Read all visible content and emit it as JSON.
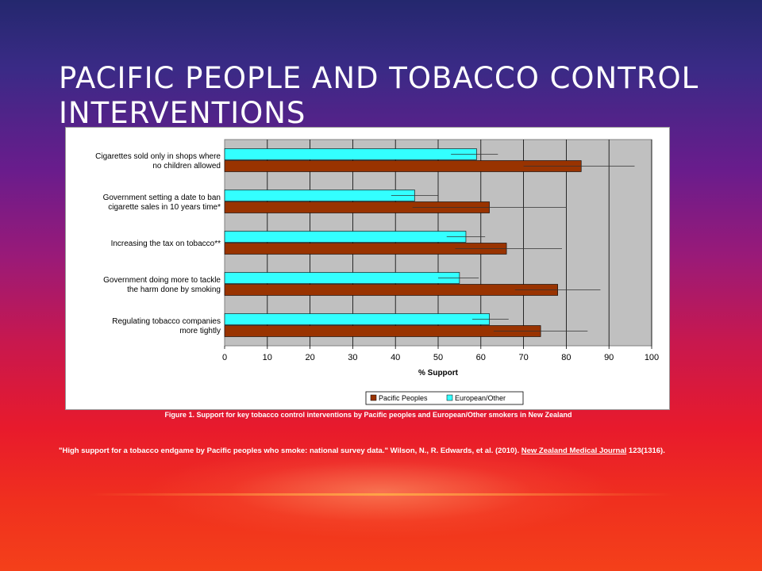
{
  "slide": {
    "title": "Pacific People and Tobacco Control Interventions",
    "caption": "Figure 1. Support for key tobacco control interventions by Pacific peoples and European/Other smokers in New Zealand",
    "citation_main": "\"High support for a tobacco endgame by Pacific peoples who smoke: national survey data.\" Wilson, N., R. Edwards, et al. (2010). ",
    "citation_journal": "New Zealand Medical Journal",
    "citation_tail": " 123(1316)."
  },
  "chart_data": {
    "type": "bar",
    "orientation": "horizontal",
    "categories": [
      [
        "Cigarettes sold only in shops where",
        "no children allowed"
      ],
      [
        "Government setting a date to ban",
        "cigarette sales in 10 years time*"
      ],
      [
        "Increasing the tax on tobacco**"
      ],
      [
        "Government doing more to tackle",
        "the harm done by smoking"
      ],
      [
        "Regulating tobacco companies",
        "more tightly"
      ]
    ],
    "series": [
      {
        "name": "European/Other",
        "color": "#33ffff",
        "values": [
          59,
          44.5,
          56.5,
          55,
          62
        ],
        "error": [
          [
            53,
            64
          ],
          [
            39,
            50
          ],
          [
            52,
            61
          ],
          [
            50,
            59.5
          ],
          [
            58,
            66.5
          ]
        ]
      },
      {
        "name": "Pacific Peoples",
        "color": "#993300",
        "values": [
          83.5,
          62,
          66,
          78,
          74
        ],
        "error": [
          [
            70,
            96
          ],
          [
            44,
            80
          ],
          [
            54,
            79
          ],
          [
            68,
            88
          ],
          [
            63,
            85
          ]
        ]
      }
    ],
    "xlabel": "% Support",
    "xticks": [
      0,
      10,
      20,
      30,
      40,
      50,
      60,
      70,
      80,
      90,
      100
    ],
    "xlim": [
      0,
      100
    ],
    "legend": [
      "Pacific Peoples",
      "European/Other"
    ],
    "legend_position": "bottom-right",
    "grid": true,
    "plot_background": "#c0c0c0"
  }
}
